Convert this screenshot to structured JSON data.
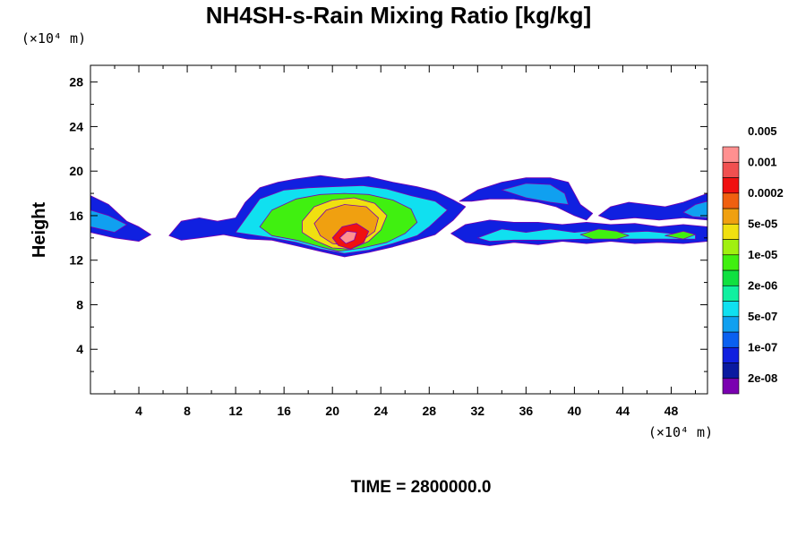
{
  "chart_data": {
    "type": "heatmap",
    "title": "NH4SH-s-Rain Mixing Ratio [kg/kg]",
    "ylabel": "Height",
    "x_unit": "(×10⁴ m)",
    "y_unit": "(×10⁴ m)",
    "time_label": "TIME = 2800000.0",
    "xlim": [
      0,
      51
    ],
    "ylim": [
      0,
      29.5
    ],
    "x_ticks": [
      4,
      8,
      12,
      16,
      20,
      24,
      28,
      32,
      36,
      40,
      44,
      48
    ],
    "x_tick_labels": [
      "4",
      "8",
      "12",
      "16",
      "20",
      "24",
      "28",
      "32",
      "36",
      "40",
      "44",
      "48"
    ],
    "y_ticks": [
      4,
      8,
      12,
      16,
      20,
      24,
      28
    ],
    "y_tick_labels": [
      "4",
      "8",
      "12",
      "16",
      "20",
      "24",
      "28"
    ],
    "colorbar": {
      "colors": [
        "#7a00b0",
        "#0a1aa0",
        "#1020e0",
        "#0a60f0",
        "#10a0f0",
        "#10e0f0",
        "#10f0a0",
        "#10e040",
        "#40f010",
        "#a0f010",
        "#f0e010",
        "#f0a010",
        "#f06010",
        "#f01010",
        "#f05050",
        "#ff9090"
      ],
      "labels": [
        "2e-08",
        "1e-07",
        "5e-07",
        "2e-06",
        "1e-05",
        "5e-05",
        "0.0002",
        "0.001",
        "0.005"
      ]
    },
    "regions": [
      {
        "level": 2,
        "points": [
          [
            0,
            14.5
          ],
          [
            0,
            17.8
          ],
          [
            1.5,
            17
          ],
          [
            3,
            15.5
          ],
          [
            4,
            15
          ],
          [
            5,
            14.3
          ],
          [
            4,
            13.7
          ],
          [
            2,
            14
          ]
        ]
      },
      {
        "level": 4,
        "points": [
          [
            0,
            15
          ],
          [
            0,
            16.5
          ],
          [
            1.5,
            16
          ],
          [
            3,
            15.2
          ],
          [
            2,
            14.5
          ]
        ]
      },
      {
        "level": 2,
        "points": [
          [
            6.5,
            14.2
          ],
          [
            7.5,
            15.5
          ],
          [
            9,
            15.8
          ],
          [
            10.5,
            15.5
          ],
          [
            12,
            15.8
          ],
          [
            12.8,
            17.2
          ],
          [
            14,
            18.5
          ],
          [
            15.5,
            19
          ],
          [
            17,
            19.3
          ],
          [
            19,
            19.6
          ],
          [
            21,
            19.3
          ],
          [
            23,
            19.5
          ],
          [
            25,
            19
          ],
          [
            27,
            18.6
          ],
          [
            28.5,
            18.2
          ],
          [
            30,
            17.4
          ],
          [
            31,
            16.8
          ],
          [
            30,
            15.6
          ],
          [
            28.5,
            14.3
          ],
          [
            27,
            13.8
          ],
          [
            25,
            13.2
          ],
          [
            23,
            12.7
          ],
          [
            21,
            12.3
          ],
          [
            19,
            12.8
          ],
          [
            17,
            13.3
          ],
          [
            15,
            13.8
          ],
          [
            13,
            13.9
          ],
          [
            11,
            14.3
          ],
          [
            9,
            14
          ],
          [
            7.5,
            13.8
          ]
        ]
      },
      {
        "level": 5,
        "points": [
          [
            12,
            14.5
          ],
          [
            13,
            16
          ],
          [
            14,
            17.5
          ],
          [
            16,
            18.3
          ],
          [
            18,
            18.5
          ],
          [
            20,
            18.6
          ],
          [
            22.5,
            18.7
          ],
          [
            24.5,
            18.4
          ],
          [
            26.5,
            17.8
          ],
          [
            28.5,
            17.3
          ],
          [
            29.5,
            16.5
          ],
          [
            28,
            15
          ],
          [
            27,
            14.2
          ],
          [
            25,
            13.5
          ],
          [
            23,
            12.9
          ],
          [
            21,
            12.6
          ],
          [
            19,
            13
          ],
          [
            17,
            13.6
          ],
          [
            15,
            14
          ]
        ]
      },
      {
        "level": 8,
        "points": [
          [
            14,
            15
          ],
          [
            15,
            16.5
          ],
          [
            17,
            17.5
          ],
          [
            19,
            17.9
          ],
          [
            21,
            18
          ],
          [
            23,
            17.9
          ],
          [
            25,
            17.4
          ],
          [
            26.5,
            16.6
          ],
          [
            27,
            15.4
          ],
          [
            26,
            14.4
          ],
          [
            24.5,
            13.6
          ],
          [
            22.5,
            13.1
          ],
          [
            20.5,
            12.8
          ],
          [
            19,
            13.2
          ],
          [
            17,
            13.8
          ],
          [
            15,
            14.2
          ]
        ]
      },
      {
        "level": 10,
        "points": [
          [
            17.5,
            15.5
          ],
          [
            18.5,
            16.8
          ],
          [
            20,
            17.4
          ],
          [
            21.8,
            17.6
          ],
          [
            23.5,
            17.1
          ],
          [
            24.5,
            16
          ],
          [
            24,
            14.7
          ],
          [
            23,
            13.7
          ],
          [
            21.5,
            13
          ],
          [
            20,
            13.1
          ],
          [
            18.5,
            13.8
          ],
          [
            17.5,
            14.5
          ]
        ]
      },
      {
        "level": 11,
        "points": [
          [
            18.5,
            15.3
          ],
          [
            19.5,
            16.5
          ],
          [
            21,
            17
          ],
          [
            22.8,
            16.8
          ],
          [
            23.8,
            15.8
          ],
          [
            23.5,
            14.6
          ],
          [
            22.5,
            13.8
          ],
          [
            21.3,
            13.3
          ],
          [
            20,
            13.5
          ],
          [
            19,
            14.2
          ]
        ]
      },
      {
        "level": 13,
        "points": [
          [
            20,
            14
          ],
          [
            20.8,
            15
          ],
          [
            22,
            15.3
          ],
          [
            23,
            14.6
          ],
          [
            22.6,
            13.6
          ],
          [
            21.5,
            13
          ],
          [
            20.5,
            13.3
          ]
        ]
      },
      {
        "level": 15,
        "points": [
          [
            20.6,
            14
          ],
          [
            21.2,
            14.6
          ],
          [
            22,
            14.5
          ],
          [
            21.8,
            13.8
          ],
          [
            21.1,
            13.5
          ]
        ]
      },
      {
        "level": 2,
        "points": [
          [
            29.8,
            14.4
          ],
          [
            31,
            15.2
          ],
          [
            33,
            15.6
          ],
          [
            35,
            15.4
          ],
          [
            37,
            15.4
          ],
          [
            39,
            15.2
          ],
          [
            41,
            15.4
          ],
          [
            43,
            15.2
          ],
          [
            45,
            15.3
          ],
          [
            47,
            15
          ],
          [
            49,
            15.2
          ],
          [
            51,
            15
          ],
          [
            51,
            13.7
          ],
          [
            49,
            13.5
          ],
          [
            47,
            13.6
          ],
          [
            45,
            13.5
          ],
          [
            43,
            13.7
          ],
          [
            41,
            13.5
          ],
          [
            39,
            13.7
          ],
          [
            37,
            13.4
          ],
          [
            35,
            13.6
          ],
          [
            33,
            13.3
          ],
          [
            31,
            13.6
          ]
        ]
      },
      {
        "level": 5,
        "points": [
          [
            32,
            14
          ],
          [
            34,
            14.8
          ],
          [
            36,
            14.5
          ],
          [
            38,
            14.8
          ],
          [
            40,
            14.5
          ],
          [
            42,
            14.7
          ],
          [
            44,
            14.5
          ],
          [
            46,
            14.6
          ],
          [
            48,
            14.4
          ],
          [
            50,
            14.3
          ],
          [
            50,
            13.9
          ],
          [
            47,
            13.9
          ],
          [
            44,
            13.9
          ],
          [
            41,
            13.9
          ],
          [
            38,
            13.8
          ],
          [
            35,
            13.8
          ],
          [
            33,
            13.7
          ]
        ]
      },
      {
        "level": 8,
        "points": [
          [
            40.5,
            14.3
          ],
          [
            42,
            14.8
          ],
          [
            43.5,
            14.6
          ],
          [
            44.5,
            14.2
          ],
          [
            43.5,
            13.9
          ],
          [
            41.5,
            13.9
          ]
        ]
      },
      {
        "level": 8,
        "points": [
          [
            47.5,
            14.2
          ],
          [
            49,
            14.6
          ],
          [
            50,
            14.3
          ],
          [
            49,
            13.9
          ]
        ]
      },
      {
        "level": 2,
        "points": [
          [
            30.5,
            17.3
          ],
          [
            32,
            18.3
          ],
          [
            34,
            19
          ],
          [
            36,
            19.4
          ],
          [
            38,
            19.4
          ],
          [
            39.5,
            19
          ],
          [
            40,
            18
          ],
          [
            40.5,
            17
          ],
          [
            41.5,
            16.2
          ],
          [
            41,
            15.6
          ],
          [
            40,
            16
          ],
          [
            38.5,
            16.8
          ],
          [
            37,
            17.2
          ],
          [
            35,
            17.5
          ],
          [
            33,
            17.5
          ],
          [
            31.5,
            17.3
          ]
        ]
      },
      {
        "level": 4,
        "points": [
          [
            34,
            18.3
          ],
          [
            36,
            18.9
          ],
          [
            38,
            18.8
          ],
          [
            39.2,
            18
          ],
          [
            39.5,
            17
          ],
          [
            38,
            17.2
          ],
          [
            36,
            17.6
          ]
        ]
      },
      {
        "level": 2,
        "points": [
          [
            42,
            16
          ],
          [
            43,
            16.8
          ],
          [
            44.5,
            17.2
          ],
          [
            46,
            17
          ],
          [
            47.5,
            16.8
          ],
          [
            49,
            17.2
          ],
          [
            51,
            18
          ],
          [
            51,
            15.6
          ],
          [
            49,
            15.8
          ],
          [
            47,
            15.6
          ],
          [
            45,
            15.8
          ],
          [
            43,
            15.6
          ]
        ]
      },
      {
        "level": 4,
        "points": [
          [
            49,
            16.3
          ],
          [
            50,
            17
          ],
          [
            51,
            17.3
          ],
          [
            51,
            15.8
          ],
          [
            49.8,
            15.9
          ]
        ]
      }
    ]
  }
}
